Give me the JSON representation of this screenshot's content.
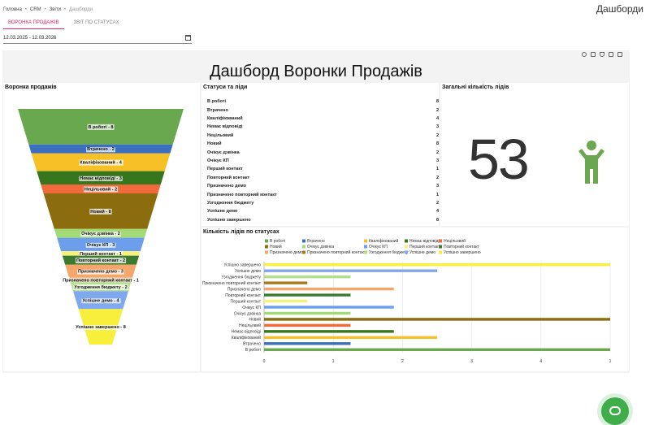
{
  "breadcrumb": [
    "Головна",
    "CRM",
    "Звіти",
    "Дашборди"
  ],
  "page_title": "Дашборди",
  "tabs": [
    {
      "label": "ВОРОНКА ПРОДАЖІВ",
      "active": true
    },
    {
      "label": "ЗВІТ ПО СТАТУСАХ",
      "active": false
    }
  ],
  "date_range": "12.03.2025 - 12.03.2026",
  "dashboard_title": "Дашборд Воронки Продажів",
  "toolbar_icons": [
    "refresh-icon",
    "folder-icon",
    "filter-icon",
    "expand-icon",
    "fullscreen-icon"
  ],
  "funnel": {
    "title": "Воронка продажів",
    "stages": [
      {
        "label": "В роботі - 8",
        "value": 8,
        "color": "#6aa84f"
      },
      {
        "label": "Втрачено - 2",
        "value": 2,
        "color": "#3d6fbf"
      },
      {
        "label": "Кваліфікований - 4",
        "value": 4,
        "color": "#f6c026"
      },
      {
        "label": "Немає відповіді - 3",
        "value": 3,
        "color": "#38761d"
      },
      {
        "label": "Нецільовий - 2",
        "value": 2,
        "color": "#f06a3c"
      },
      {
        "label": "Новий - 8",
        "value": 8,
        "color": "#8b6d0e"
      },
      {
        "label": "Очікує дзвінка - 2",
        "value": 2,
        "color": "#a3d977"
      },
      {
        "label": "Очікує КП - 3",
        "value": 3,
        "color": "#6d9eeb"
      },
      {
        "label": "Перший контакт - 1",
        "value": 1,
        "color": "#f9f27a"
      },
      {
        "label": "Повторний контакт - 2",
        "value": 2,
        "color": "#3c7a2f"
      },
      {
        "label": "Призначено демо - 3",
        "value": 3,
        "color": "#f4a66b"
      },
      {
        "label": "Призначено повторний контакт - 1",
        "value": 1,
        "color": "#a8791f"
      },
      {
        "label": "Узгодження бюджету - 2",
        "value": 2,
        "color": "#b2df8a"
      },
      {
        "label": "Успішне демо - 4",
        "value": 4,
        "color": "#7fa8ef"
      },
      {
        "label": "Успішно завершено - 8",
        "value": 8,
        "color": "#f7ef3c"
      }
    ]
  },
  "stats": {
    "title": "Статуси та ліди",
    "rows": [
      {
        "label": "В роботі",
        "value": "8"
      },
      {
        "label": "Втрачено",
        "value": "2"
      },
      {
        "label": "Кваліфікований",
        "value": "4"
      },
      {
        "label": "Немає відповіді",
        "value": "3"
      },
      {
        "label": "Нецільовий",
        "value": "2"
      },
      {
        "label": "Новий",
        "value": "8"
      },
      {
        "label": "Очікує дзвінка",
        "value": "2"
      },
      {
        "label": "Очікує КП",
        "value": "3"
      },
      {
        "label": "Перший контакт",
        "value": "1"
      },
      {
        "label": "Повторний контакт",
        "value": "2"
      },
      {
        "label": "Призначено демо",
        "value": "3"
      },
      {
        "label": "Призначено повторний контакт",
        "value": "1"
      },
      {
        "label": "Узгодження бюджету",
        "value": "2"
      },
      {
        "label": "Успішне демо",
        "value": "4"
      },
      {
        "label": "Успішно завершено",
        "value": "8"
      }
    ]
  },
  "total": {
    "title": "Загальні кількість лідів",
    "value": "53",
    "icon": "person-icon",
    "icon_color": "#6aa84f"
  },
  "chart_data": {
    "type": "bar",
    "orientation": "horizontal",
    "title": "Кількість лідів по статусах",
    "categories": [
      "Успішно завершено",
      "Успішне демо",
      "Узгодження бюджету",
      "Призначено повторний контакт",
      "Призначено демо",
      "Повторний контакт",
      "Перший контакт",
      "Очікує КП",
      "Очікує дзвінка",
      "Новий",
      "Нецільовий",
      "Немає відповіді",
      "Кваліфікований",
      "Втрачено",
      "В роботі"
    ],
    "values": [
      8,
      4,
      2,
      1,
      3,
      2,
      1,
      3,
      2,
      8,
      2,
      3,
      4,
      2,
      8
    ],
    "colors": [
      "#f7ef3c",
      "#7fa8ef",
      "#b2df8a",
      "#a8791f",
      "#f4a66b",
      "#3c7a2f",
      "#f9f27a",
      "#6d9eeb",
      "#a3d977",
      "#8b6d0e",
      "#f06a3c",
      "#38761d",
      "#f6c026",
      "#3d6fbf",
      "#6aa84f"
    ],
    "xticks": [
      "0",
      "1",
      "2",
      "3",
      "4",
      "1"
    ],
    "xlim": [
      0,
      8
    ],
    "legend": [
      {
        "name": "В роботі",
        "color": "#6aa84f"
      },
      {
        "name": "Втрачено",
        "color": "#3d6fbf"
      },
      {
        "name": "Кваліфікований",
        "color": "#f6c026"
      },
      {
        "name": "Немає відповіді",
        "color": "#38761d"
      },
      {
        "name": "Нецільовий",
        "color": "#f06a3c"
      },
      {
        "name": "Новий",
        "color": "#8b6d0e"
      },
      {
        "name": "Очікує дзвінка",
        "color": "#a3d977"
      },
      {
        "name": "Очікує КП",
        "color": "#6d9eeb"
      },
      {
        "name": "Перший контакт",
        "color": "#f9f27a"
      },
      {
        "name": "Повторний контакт",
        "color": "#3c7a2f"
      },
      {
        "name": "Призначено демо",
        "color": "#f4a66b"
      },
      {
        "name": "Призначено повторний контакт",
        "color": "#a8791f"
      },
      {
        "name": "Узгодження бюджету",
        "color": "#b2df8a"
      },
      {
        "name": "Успішне демо",
        "color": "#7fa8ef"
      },
      {
        "name": "Успішно завершено",
        "color": "#f7ef3c"
      }
    ],
    "legend_position": "top",
    "grid": true
  },
  "fab_icon": "chat-support-icon"
}
